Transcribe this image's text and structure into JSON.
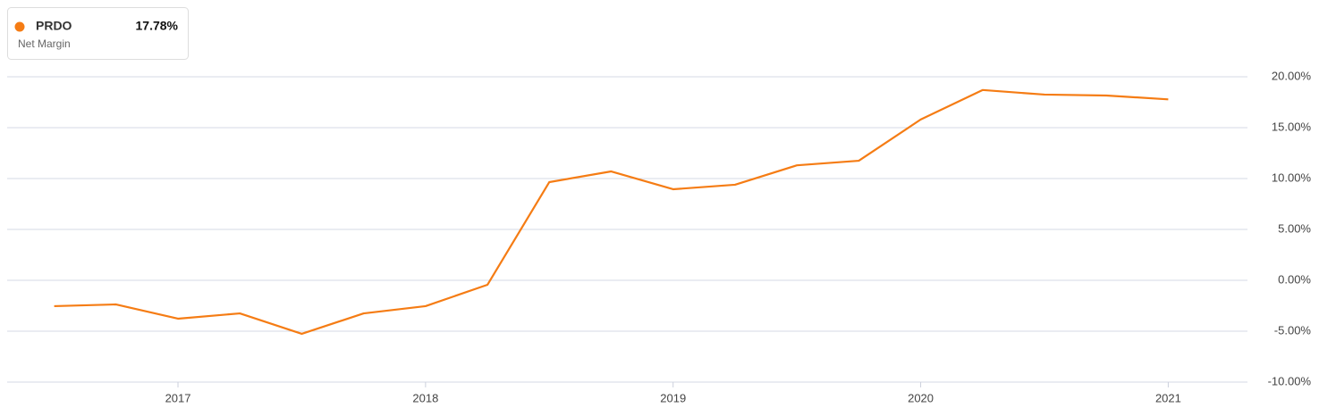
{
  "chart_data": {
    "type": "line",
    "x": [
      2016.5,
      2016.75,
      2017,
      2017.25,
      2017.5,
      2017.75,
      2018,
      2018.25,
      2018.5,
      2018.75,
      2019,
      2019.25,
      2019.5,
      2019.75,
      2020,
      2020.25,
      2020.5,
      2020.75,
      2021
    ],
    "series": [
      {
        "name": "PRDO",
        "metric": "Net Margin",
        "current_label": "17.78%",
        "color": "#f57c14",
        "values": [
          -2.54,
          -2.37,
          -3.77,
          -3.25,
          -5.26,
          -3.25,
          -2.54,
          -0.44,
          9.65,
          10.7,
          8.95,
          9.39,
          11.3,
          11.75,
          15.8,
          18.7,
          18.25,
          18.16,
          17.78
        ]
      }
    ],
    "xlim": [
      2016.31,
      2021.32
    ],
    "xticks": [
      2017,
      2018,
      2019,
      2020,
      2021
    ],
    "ylim": [
      -10,
      20
    ],
    "yticks": [
      {
        "value": -10,
        "label": "-10.00%"
      },
      {
        "value": -5,
        "label": "-5.00%"
      },
      {
        "value": 0,
        "label": "0.00%"
      },
      {
        "value": 5,
        "label": "5.00%"
      },
      {
        "value": 10,
        "label": "10.00%"
      },
      {
        "value": 15,
        "label": "15.00%"
      },
      {
        "value": 20,
        "label": "20.00%"
      }
    ],
    "grid": true
  }
}
